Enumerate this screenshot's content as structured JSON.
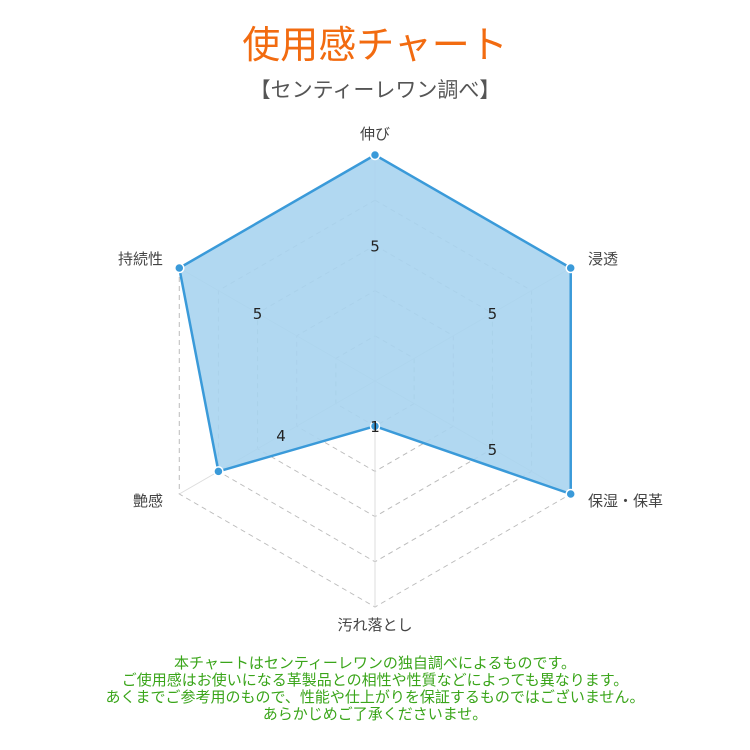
{
  "title": "使用感チャート",
  "subtitle": "【センティーレワン調べ】",
  "chart_data": {
    "type": "radar",
    "categories": [
      "伸び",
      "浸透",
      "保湿・保革",
      "汚れ落とし",
      "艶感",
      "持続性"
    ],
    "values": [
      5,
      5,
      5,
      1,
      4,
      5
    ],
    "range": [
      0,
      5
    ],
    "levels": 5,
    "grid": true,
    "data_labels": true,
    "colors": {
      "line": "#3a9ad9",
      "fill": "#a9d4f0",
      "grid": "#bbbbbb"
    }
  },
  "note_lines": [
    "本チャートはセンティーレワンの独自調べによるものです。",
    "ご使用感はお使いになる革製品との相性や性質などによっても異なります。",
    "あくまでご参考用のもので、性能や仕上がりを保証するものではございません。",
    "あらかじめご了承くださいませ。"
  ]
}
